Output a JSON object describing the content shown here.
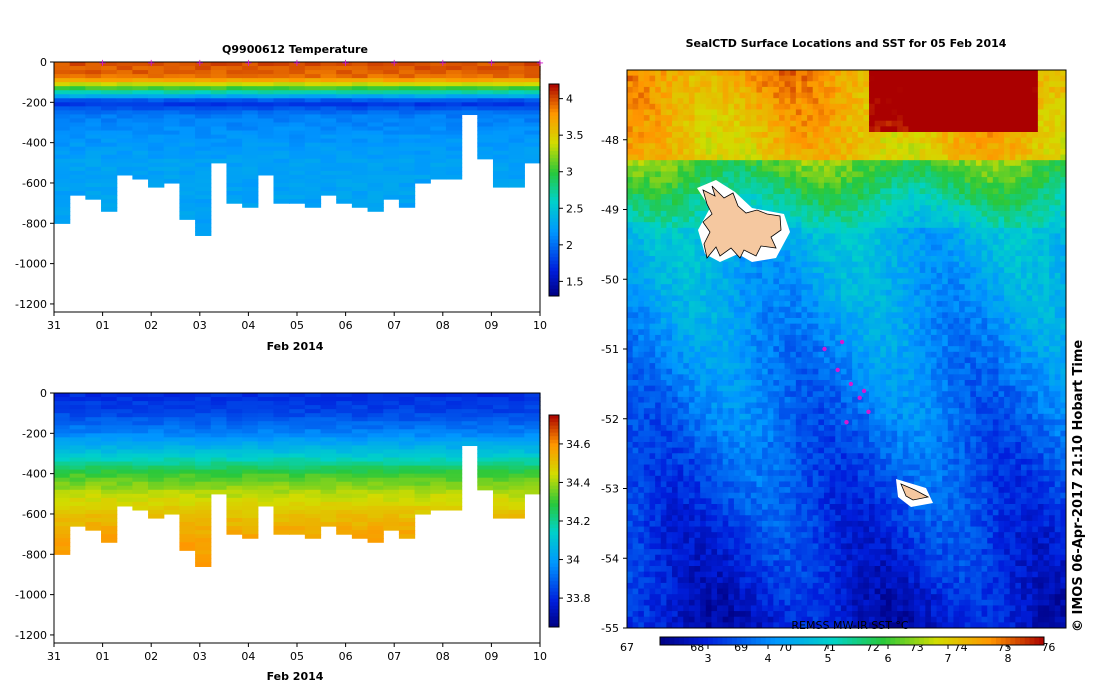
{
  "chart_data": [
    {
      "type": "heatmap",
      "title": "Q9900612  Temperature",
      "xlabel": "Feb 2014",
      "ylabel": "",
      "x_ticks": [
        "31",
        "01",
        "02",
        "03",
        "04",
        "05",
        "06",
        "07",
        "08",
        "09",
        "10"
      ],
      "y_ticks": [
        0,
        -200,
        -400,
        -600,
        -800,
        -1000,
        -1200
      ],
      "ylim": [
        -1240,
        0
      ],
      "colorbar_ticks": [
        "1.5",
        "2",
        "2.5",
        "3",
        "3.5",
        "4"
      ],
      "colorbar_range": [
        1.3,
        4.2
      ],
      "profile_max_depth": [
        800,
        660,
        670,
        730,
        560,
        580,
        620,
        590,
        780,
        860,
        500,
        700,
        710,
        560,
        700,
        690,
        720,
        660,
        700,
        720,
        740,
        680,
        720,
        590,
        570,
        570,
        260,
        470,
        620,
        620,
        500
      ],
      "surface_markers": 10,
      "value_profile": {
        "depth": [
          0,
          80,
          120,
          160,
          200,
          260,
          350,
          500,
          900
        ],
        "value": [
          4.0,
          3.9,
          3.2,
          2.5,
          1.7,
          2.05,
          2.15,
          2.25,
          2.25
        ]
      }
    },
    {
      "type": "heatmap",
      "title": "",
      "xlabel": "Feb 2014",
      "ylabel": "",
      "x_ticks": [
        "31",
        "01",
        "02",
        "03",
        "04",
        "05",
        "06",
        "07",
        "08",
        "09",
        "10"
      ],
      "y_ticks": [
        0,
        -200,
        -400,
        -600,
        -800,
        -1000,
        -1200
      ],
      "ylim": [
        -1240,
        0
      ],
      "colorbar_ticks": [
        "33.8",
        "34",
        "34.2",
        "34.4",
        "34.6"
      ],
      "colorbar_range": [
        33.65,
        34.75
      ],
      "profile_max_depth": [
        800,
        660,
        670,
        730,
        560,
        580,
        620,
        590,
        780,
        860,
        500,
        700,
        710,
        560,
        700,
        690,
        720,
        660,
        700,
        720,
        740,
        680,
        720,
        590,
        570,
        570,
        260,
        470,
        620,
        620,
        500
      ],
      "value_profile": {
        "depth": [
          0,
          100,
          200,
          300,
          400,
          500,
          600,
          700,
          900
        ],
        "value": [
          33.8,
          33.85,
          33.95,
          34.1,
          34.3,
          34.42,
          34.5,
          34.56,
          34.6
        ]
      }
    },
    {
      "type": "heatmap",
      "title": "SealCTD Surface Locations and SST for 05 Feb 2014",
      "xlabel": "",
      "ylabel": "",
      "x_ticks": [
        "67",
        "68",
        "69",
        "70",
        "71",
        "72",
        "73",
        "74",
        "75",
        "76"
      ],
      "y_ticks": [
        "-48",
        "-49",
        "-50",
        "-51",
        "-52",
        "-53",
        "-54",
        "-55"
      ],
      "xlim": [
        67,
        77
      ],
      "ylim": [
        -55,
        -47
      ],
      "colorbar_label": "REMSS MW-IR SST °C",
      "colorbar_ticks": [
        "3",
        "4",
        "5",
        "6",
        "7",
        "8"
      ],
      "colorbar_range": [
        2.2,
        8.6
      ],
      "seal_positions": [
        [
          71.5,
          -51.0
        ],
        [
          71.8,
          -51.3
        ],
        [
          72.1,
          -51.5
        ],
        [
          72.3,
          -51.7
        ],
        [
          72.5,
          -51.9
        ],
        [
          72.0,
          -52.05
        ],
        [
          71.9,
          -50.9
        ],
        [
          72.4,
          -51.6
        ]
      ],
      "islands": [
        "Kerguelen",
        "Heard Island"
      ]
    }
  ],
  "credit": "© IMOS 06-Apr-2017 21:10 Hobart Time",
  "colors": {
    "marker": "#d21ad2",
    "land": "#f5c8a0"
  }
}
